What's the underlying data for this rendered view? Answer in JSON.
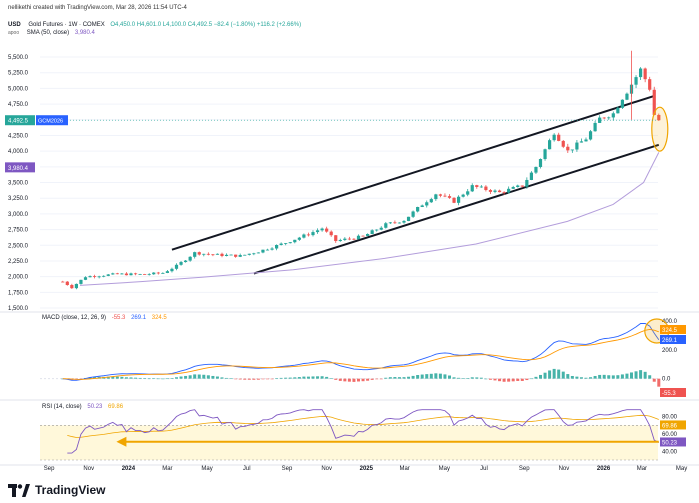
{
  "credit": "nellikethi created with TradingView.com, Mar 28, 2026 11:54 UTC-4",
  "currency_top": "USD",
  "currency_sub": "apoo",
  "legend_main": {
    "symbol": "Gold Futures · 1W · COMEX",
    "ohlc": "O4,450.0  H4,601.0  L4,100.0  C4,492.5  −82.4 (−1.80%)  +116.2 (+2.66%)"
  },
  "legend_sma": "SMA (50, close)",
  "legend_sma_val": "3,980.4",
  "price_tag": "4,492.5",
  "symbol_tag": "GCM2026",
  "sma_tag": "3,980.4",
  "macd_legend": {
    "label": "MACD (close, 12, 26, 9)",
    "hist": "-55.3",
    "macd": "269.1",
    "signal": "324.5"
  },
  "macd_tags": {
    "signal": "324.5",
    "macd": "269.1",
    "hist": "-55.3"
  },
  "rsi_legend": {
    "label": "RSI (14, close)",
    "rsi": "50.23",
    "ma": "69.86"
  },
  "rsi_tags": {
    "ma": "69.86",
    "rsi": "50.23"
  },
  "brand": "TradingView",
  "colors": {
    "up": "#26a69a",
    "down": "#ef5350",
    "sma": "#b39ddb",
    "macd": "#2962ff",
    "signal": "#ff9800",
    "rsi": "#7e57c2",
    "highlight": "#f0a500"
  },
  "chart_data": {
    "type": "candlestick",
    "title": "Gold Futures · 1W · COMEX",
    "price_axis": {
      "ticks": [
        "5,500.0",
        "5,250.0",
        "5,000.0",
        "4,750.0",
        "4,500.0",
        "4,250.0",
        "4,000.0",
        "3,750.0",
        "3,500.0",
        "3,250.0",
        "3,000.0",
        "2,750.0",
        "2,500.0",
        "2,250.0",
        "2,000.0",
        "1,750.0",
        "1,500.0"
      ],
      "range": [
        1500,
        5500
      ]
    },
    "macd_axis": {
      "ticks": [
        "400.0",
        "200.0",
        "0.0"
      ],
      "range": [
        -120,
        420
      ]
    },
    "rsi_axis": {
      "ticks": [
        "80.00",
        "60.00",
        "40.00"
      ],
      "range": [
        30,
        90
      ],
      "overbought": 70,
      "oversold": 30
    },
    "x_labels": [
      "Sep",
      "Nov",
      "2024",
      "Mar",
      "May",
      "Jul",
      "Sep",
      "Nov",
      "2025",
      "Mar",
      "May",
      "Jul",
      "Sep",
      "Nov",
      "2026",
      "Mar",
      "May"
    ],
    "price_path": [
      [
        "2023-09-22",
        1920
      ],
      [
        "2023-10-06",
        1830
      ],
      [
        "2023-10-27",
        2000
      ],
      [
        "2023-12-15",
        2040
      ],
      [
        "2024-01-26",
        2035
      ],
      [
        "2024-02-23",
        2060
      ],
      [
        "2024-03-15",
        2170
      ],
      [
        "2024-04-12",
        2380
      ],
      [
        "2024-05-10",
        2350
      ],
      [
        "2024-06-21",
        2330
      ],
      [
        "2024-07-19",
        2400
      ],
      [
        "2024-08-30",
        2540
      ],
      [
        "2024-10-04",
        2680
      ],
      [
        "2024-10-25",
        2770
      ],
      [
        "2024-11-15",
        2570
      ],
      [
        "2024-12-27",
        2640
      ],
      [
        "2025-01-31",
        2830
      ],
      [
        "2025-02-28",
        2900
      ],
      [
        "2025-03-28",
        3150
      ],
      [
        "2025-04-18",
        3320
      ],
      [
        "2025-05-16",
        3200
      ],
      [
        "2025-06-13",
        3440
      ],
      [
        "2025-07-25",
        3340
      ],
      [
        "2025-08-29",
        3450
      ],
      [
        "2025-09-19",
        3750
      ],
      [
        "2025-10-17",
        4300
      ],
      [
        "2025-11-07",
        4000
      ],
      [
        "2025-12-05",
        4200
      ],
      [
        "2025-12-26",
        4520
      ],
      [
        "2026-01-16",
        4600
      ],
      [
        "2026-01-30",
        4850
      ],
      [
        "2026-02-06",
        4950
      ],
      [
        "2026-02-27",
        5300
      ],
      [
        "2026-03-06",
        5150
      ],
      [
        "2026-03-13",
        5000
      ],
      [
        "2026-03-20",
        4580
      ],
      [
        "2026-03-27",
        4492.5
      ]
    ],
    "series": [
      {
        "name": "SMA (50, close)",
        "values": [
          [
            -8,
            1860
          ],
          [
            -4,
            1920
          ],
          [
            0,
            1990
          ],
          [
            6,
            2110
          ],
          [
            12,
            2290
          ],
          [
            18,
            2520
          ],
          [
            24,
            2880
          ],
          [
            27,
            3150
          ],
          [
            29,
            3500
          ],
          [
            30,
            3980.4
          ]
        ]
      }
    ],
    "annotations": {
      "channel_upper": [
        [
          "2024-03-08",
          2430
        ],
        [
          "2026-03-20",
          4880
        ]
      ],
      "channel_lower": [
        [
          "2024-07-12",
          2050
        ],
        [
          "2026-03-27",
          4100
        ]
      ],
      "highlight_last_candles": true,
      "rsi_arrow": {
        "from": "2026-03-27",
        "to": "2023-10-13",
        "level": 51
      }
    }
  }
}
